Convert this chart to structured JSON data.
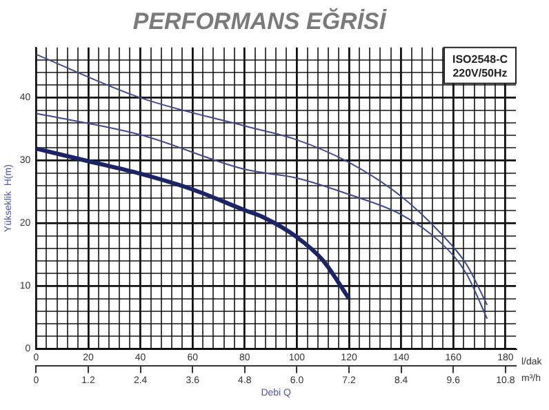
{
  "chart_data": {
    "type": "line",
    "title": "PERFORMANS EĞRİSİ",
    "xlabel": "Debi Q",
    "ylabel": "Yükseklik  H(m)",
    "annotations": [
      "ISO2548-C",
      "220V/50Hz",
      "l/dak",
      "m³/h"
    ],
    "xlim": [
      0,
      184
    ],
    "ylim": [
      0,
      48
    ],
    "x2lim": [
      0,
      11.04
    ],
    "xticks": [
      0,
      {
        "value": 4,
        "label": null
      },
      {
        "value": 8,
        "label": null
      },
      {
        "value": 12,
        "label": null
      },
      {
        "value": 16,
        "label": null
      },
      20,
      {
        "value": 24,
        "label": null
      },
      {
        "value": 28,
        "label": null
      },
      {
        "value": 32,
        "label": null
      },
      {
        "value": 36,
        "label": null
      },
      40,
      {
        "value": 44,
        "label": null
      },
      {
        "value": 48,
        "label": null
      },
      {
        "value": 52,
        "label": null
      },
      {
        "value": 56,
        "label": null
      },
      60,
      {
        "value": 64,
        "label": null
      },
      {
        "value": 68,
        "label": null
      },
      {
        "value": 72,
        "label": null
      },
      {
        "value": 76,
        "label": null
      },
      80,
      {
        "value": 84,
        "label": null
      },
      {
        "value": 88,
        "label": null
      },
      {
        "value": 92,
        "label": null
      },
      {
        "value": 96,
        "label": null
      },
      100,
      {
        "value": 104,
        "label": null
      },
      {
        "value": 108,
        "label": null
      },
      {
        "value": 112,
        "label": null
      },
      {
        "value": 116,
        "label": null
      },
      120,
      {
        "value": 124,
        "label": null
      },
      {
        "value": 128,
        "label": null
      },
      {
        "value": 132,
        "label": null
      },
      {
        "value": 136,
        "label": null
      },
      140,
      {
        "value": 144,
        "label": null
      },
      {
        "value": 148,
        "label": null
      },
      {
        "value": 152,
        "label": null
      },
      {
        "value": 156,
        "label": null
      },
      160,
      {
        "value": 164,
        "label": null
      },
      {
        "value": 168,
        "label": null
      },
      {
        "value": 172,
        "label": null
      },
      {
        "value": 176,
        "label": null
      },
      180
    ],
    "x2ticks": [
      0,
      1.2,
      2.4,
      3.6,
      4.8,
      {
        "value": 6.0,
        "label": "6.0"
      },
      7.2,
      8.4,
      9.6,
      10.8
    ],
    "yticks": [
      0,
      {
        "value": 2,
        "label": null
      },
      {
        "value": 4,
        "label": null
      },
      {
        "value": 6,
        "label": null
      },
      {
        "value": 8,
        "label": null
      },
      10,
      {
        "value": 12,
        "label": null
      },
      {
        "value": 14,
        "label": null
      },
      {
        "value": 16,
        "label": null
      },
      {
        "value": 18,
        "label": null
      },
      20,
      {
        "value": 22,
        "label": null
      },
      {
        "value": 24,
        "label": null
      },
      {
        "value": 26,
        "label": null
      },
      {
        "value": 28,
        "label": null
      },
      30,
      {
        "value": 32,
        "label": null
      },
      {
        "value": 34,
        "label": null
      },
      {
        "value": 36,
        "label": null
      },
      {
        "value": 38,
        "label": null
      },
      40,
      {
        "value": 42,
        "label": null
      },
      {
        "value": 44,
        "label": null
      },
      {
        "value": 46,
        "label": null
      }
    ],
    "grid": true,
    "legend": false,
    "marker": "none",
    "line_style": "solid",
    "series": [
      {
        "color": "#3d4a8f",
        "x": [
          0,
          40,
          80,
          100,
          120,
          140,
          155,
          165,
          173
        ],
        "values": [
          46.9,
          40,
          35.5,
          33.3,
          29.7,
          24.3,
          18.5,
          13.5,
          7.0
        ]
      },
      {
        "color": "#3d4a8f",
        "x": [
          0,
          40,
          80,
          100,
          120,
          140,
          155,
          165,
          173
        ],
        "values": [
          37.5,
          34.1,
          28.6,
          27.2,
          24.6,
          21.4,
          17,
          12,
          4.8
        ]
      },
      {
        "color": "#1a2466",
        "x": [
          0,
          20,
          40,
          60,
          80,
          87,
          100,
          110,
          120
        ],
        "values": [
          31.9,
          29.9,
          27.9,
          25.4,
          22.1,
          21.0,
          17.8,
          14.1,
          8.0
        ]
      }
    ]
  }
}
